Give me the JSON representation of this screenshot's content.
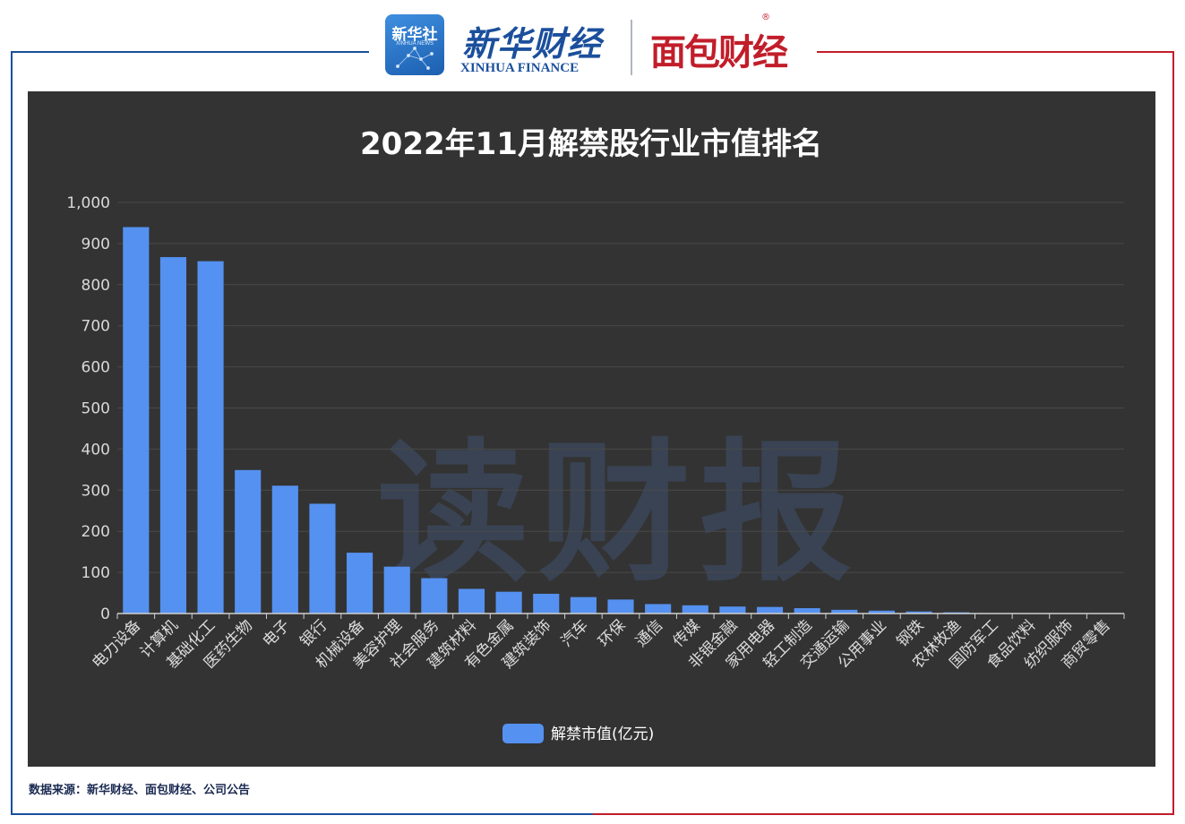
{
  "header": {
    "xinhua_tile_cn": "新华社",
    "xinhua_tile_en": "XINHUA NEWS",
    "xinhua_finance_cn": "新华财经",
    "xinhua_finance_en": "XINHUA FINANCE",
    "mianbao_brand": "面包财经",
    "registered_mark": "®"
  },
  "watermark": "读财报",
  "source_note": "数据来源：新华财经、面包财经、公司公告",
  "colors": {
    "bar": "#5591f0",
    "panel": "#333333",
    "frame_blue": "#1b4f9c",
    "frame_red": "#c21d2a"
  },
  "chart_data": {
    "type": "bar",
    "title": "2022年11月解禁股行业市值排名",
    "xlabel": "",
    "ylabel": "",
    "ylim": [
      0,
      1000
    ],
    "yticks": [
      0,
      100,
      200,
      300,
      400,
      500,
      600,
      700,
      800,
      900,
      1000
    ],
    "ytick_labels": [
      "0",
      "100",
      "200",
      "300",
      "400",
      "500",
      "600",
      "700",
      "800",
      "900",
      "1,000"
    ],
    "grid": true,
    "legend_position": "bottom-center",
    "categories": [
      "电力设备",
      "计算机",
      "基础化工",
      "医药生物",
      "电子",
      "银行",
      "机械设备",
      "美容护理",
      "社会服务",
      "建筑材料",
      "有色金属",
      "建筑装饰",
      "汽车",
      "环保",
      "通信",
      "传媒",
      "非银金融",
      "家用电器",
      "轻工制造",
      "交通运输",
      "公用事业",
      "钢铁",
      "农林牧渔",
      "国防军工",
      "食品饮料",
      "纺织服饰",
      "商贸零售"
    ],
    "series": [
      {
        "name": "解禁市值(亿元)",
        "values": [
          940,
          867,
          857,
          349,
          311,
          267,
          148,
          114,
          86,
          60,
          53,
          48,
          40,
          34,
          23,
          20,
          17,
          16,
          13,
          9,
          7,
          5,
          3,
          1,
          0.5,
          0.3,
          0.2
        ]
      }
    ]
  }
}
